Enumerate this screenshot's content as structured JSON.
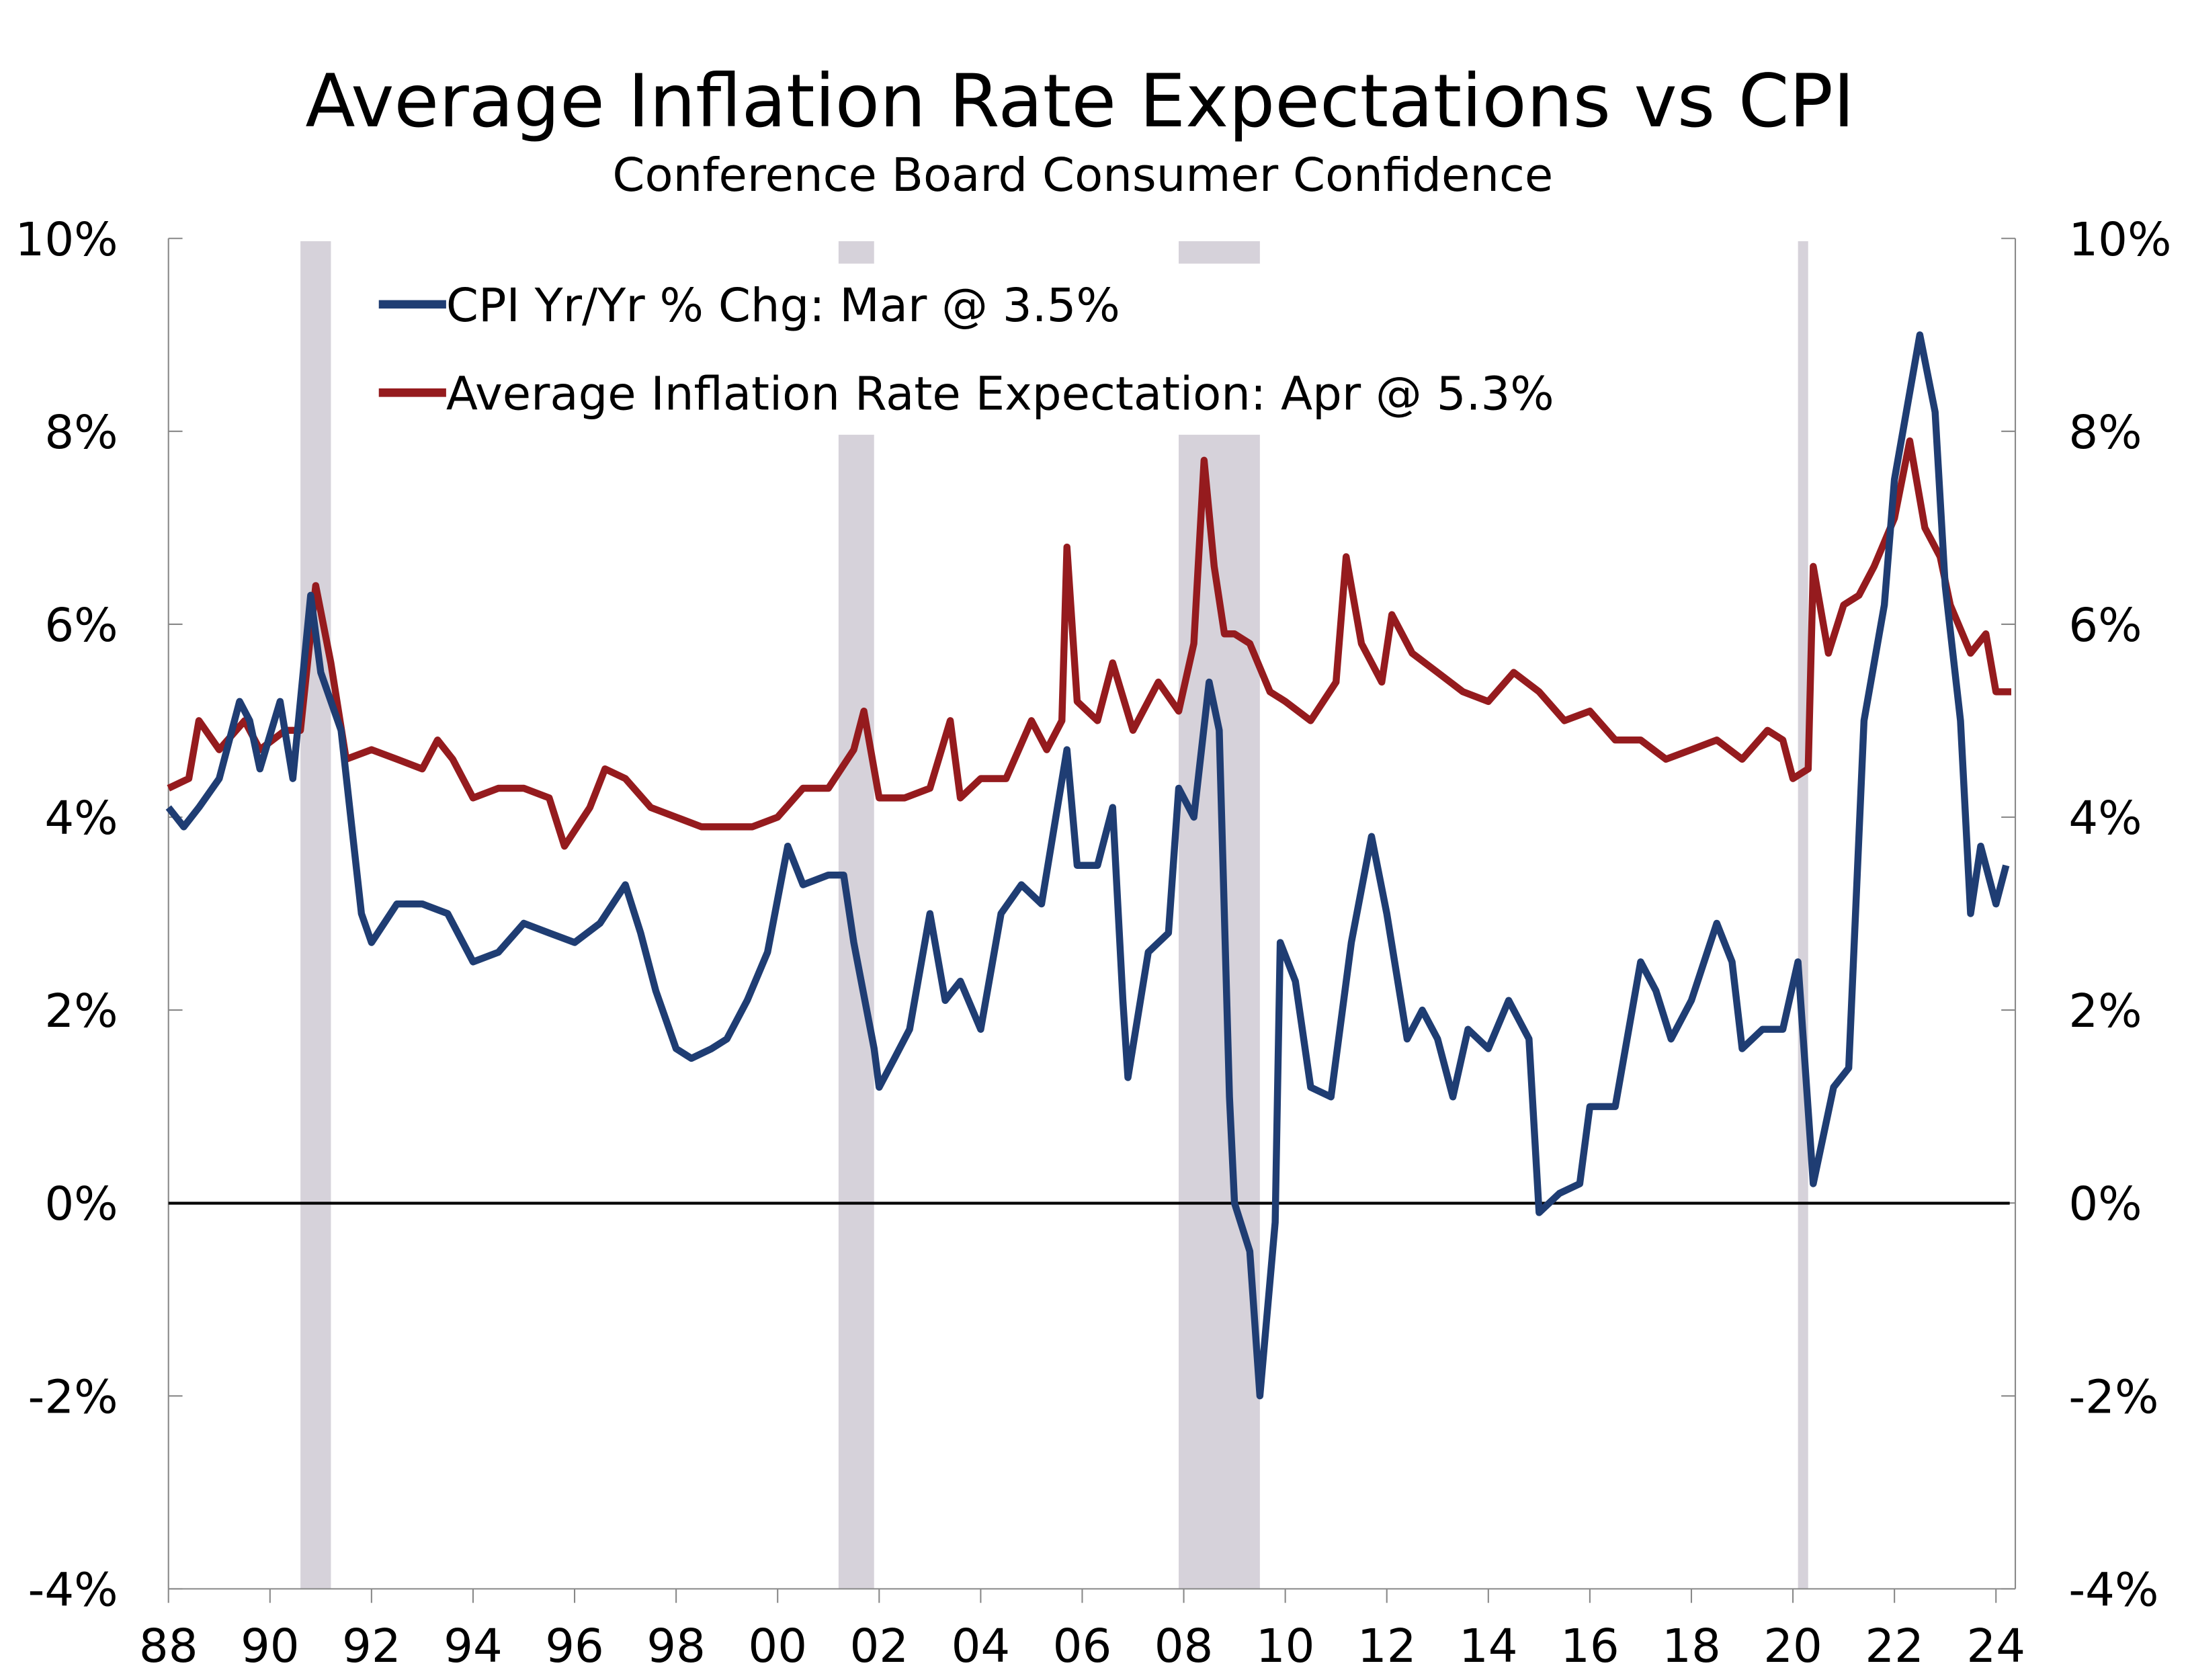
{
  "chart_data": {
    "type": "line",
    "title": "Average Inflation Rate Expectations vs CPI",
    "subtitle": "Conference Board Consumer Confidence",
    "xlabel": "",
    "ylabel": "",
    "xlim": [
      1988,
      2024.6
    ],
    "ylim": [
      -4,
      10
    ],
    "y_ticks": [
      "10%",
      "8%",
      "6%",
      "4%",
      "2%",
      "0%",
      "-2%",
      "-4%"
    ],
    "y_tick_values": [
      10,
      8,
      6,
      4,
      2,
      0,
      -2,
      -4
    ],
    "x_ticks": [
      "88",
      "90",
      "92",
      "94",
      "96",
      "98",
      "00",
      "02",
      "04",
      "06",
      "08",
      "10",
      "12",
      "14",
      "16",
      "18",
      "20",
      "22",
      "24"
    ],
    "x_tick_values": [
      1988,
      1990,
      1992,
      1994,
      1996,
      1998,
      2000,
      2002,
      2004,
      2006,
      2008,
      2010,
      2012,
      2014,
      2016,
      2018,
      2020,
      2022,
      2024
    ],
    "legend_position": "top-left",
    "recessions": [
      [
        1990.6,
        1991.2
      ],
      [
        2001.2,
        2001.9
      ],
      [
        2007.9,
        2009.5
      ],
      [
        2020.1,
        2020.3
      ]
    ],
    "colors": {
      "cpi": "#1f3d73",
      "expectation": "#951b1e",
      "recession": "#d6d2da"
    },
    "series": [
      {
        "name": "CPI Yr/Yr % Chg: Mar @ 3.5%",
        "color": "#1f3d73",
        "x": [
          1988.0,
          1988.3,
          1988.6,
          1989.0,
          1989.4,
          1989.6,
          1989.8,
          1990.2,
          1990.45,
          1990.8,
          1991.0,
          1991.4,
          1991.8,
          1992.0,
          1992.5,
          1993.0,
          1993.5,
          1994.0,
          1994.5,
          1995.0,
          1995.5,
          1996.0,
          1996.5,
          1997.0,
          1997.3,
          1997.6,
          1998.0,
          1998.3,
          1998.7,
          1999.0,
          1999.4,
          1999.8,
          2000.2,
          2000.5,
          2001.0,
          2001.3,
          2001.5,
          2001.9,
          2002.0,
          2002.3,
          2002.6,
          2003.0,
          2003.3,
          2003.6,
          2004.0,
          2004.4,
          2004.8,
          2005.2,
          2005.7,
          2005.9,
          2006.3,
          2006.6,
          2006.8,
          2006.9,
          2007.3,
          2007.7,
          2007.9,
          2008.2,
          2008.5,
          2008.7,
          2008.9,
          2009.0,
          2009.3,
          2009.5,
          2009.8,
          2009.9,
          2010.2,
          2010.5,
          2010.9,
          2011.3,
          2011.7,
          2012.0,
          2012.4,
          2012.7,
          2013.0,
          2013.3,
          2013.6,
          2014.0,
          2014.4,
          2014.8,
          2015.0,
          2015.4,
          2015.8,
          2016.0,
          2016.5,
          2017.0,
          2017.3,
          2017.6,
          2018.0,
          2018.5,
          2018.8,
          2019.0,
          2019.4,
          2019.8,
          2020.1,
          2020.4,
          2020.8,
          2021.1,
          2021.4,
          2021.8,
          2022.0,
          2022.5,
          2022.8,
          2023.0,
          2023.3,
          2023.5,
          2023.7,
          2024.0,
          2024.2
        ],
        "values": [
          4.1,
          3.9,
          4.1,
          4.4,
          5.2,
          5.0,
          4.5,
          5.2,
          4.4,
          6.3,
          5.5,
          4.9,
          3.0,
          2.7,
          3.1,
          3.1,
          3.0,
          2.5,
          2.6,
          2.9,
          2.8,
          2.7,
          2.9,
          3.3,
          2.8,
          2.2,
          1.6,
          1.5,
          1.6,
          1.7,
          2.1,
          2.6,
          3.7,
          3.3,
          3.4,
          3.4,
          2.7,
          1.6,
          1.2,
          1.5,
          1.8,
          3.0,
          2.1,
          2.3,
          1.8,
          3.0,
          3.3,
          3.1,
          4.7,
          3.5,
          3.5,
          4.1,
          2.1,
          1.3,
          2.6,
          2.8,
          4.3,
          4.0,
          5.4,
          4.9,
          1.1,
          0.0,
          -0.5,
          -2.0,
          -0.2,
          2.7,
          2.3,
          1.2,
          1.1,
          2.7,
          3.8,
          3.0,
          1.7,
          2.0,
          1.7,
          1.1,
          1.8,
          1.6,
          2.1,
          1.7,
          -0.1,
          0.1,
          0.2,
          1.0,
          1.0,
          2.5,
          2.2,
          1.7,
          2.1,
          2.9,
          2.5,
          1.6,
          1.8,
          1.8,
          2.5,
          0.2,
          1.2,
          1.4,
          5.0,
          6.2,
          7.5,
          9.0,
          8.2,
          6.4,
          5.0,
          3.0,
          3.7,
          3.1,
          3.5
        ]
      },
      {
        "name": "Average Inflation Rate Expectation: Apr @ 5.3%",
        "color": "#951b1e",
        "x": [
          1988.0,
          1988.4,
          1988.6,
          1989.0,
          1989.5,
          1989.8,
          1990.3,
          1990.6,
          1990.9,
          1991.2,
          1991.5,
          1992.0,
          1992.5,
          1993.0,
          1993.3,
          1993.6,
          1994.0,
          1994.5,
          1995.0,
          1995.5,
          1995.8,
          1996.3,
          1996.6,
          1997.0,
          1997.5,
          1998.0,
          1998.5,
          1999.0,
          1999.5,
          2000.0,
          2000.5,
          2001.0,
          2001.5,
          2001.7,
          2002.0,
          2002.5,
          2003.0,
          2003.4,
          2003.6,
          2004.0,
          2004.5,
          2005.0,
          2005.3,
          2005.6,
          2005.7,
          2005.9,
          2006.3,
          2006.6,
          2007.0,
          2007.5,
          2007.9,
          2008.2,
          2008.4,
          2008.6,
          2008.8,
          2009.0,
          2009.3,
          2009.7,
          2010.0,
          2010.5,
          2011.0,
          2011.2,
          2011.5,
          2011.9,
          2012.1,
          2012.5,
          2013.0,
          2013.5,
          2014.0,
          2014.5,
          2015.0,
          2015.5,
          2016.0,
          2016.5,
          2017.0,
          2017.5,
          2018.0,
          2018.5,
          2019.0,
          2019.5,
          2019.8,
          2020.0,
          2020.3,
          2020.4,
          2020.7,
          2021.0,
          2021.3,
          2021.6,
          2022.0,
          2022.3,
          2022.6,
          2022.9,
          2023.1,
          2023.5,
          2023.8,
          2024.0,
          2024.3
        ],
        "values": [
          4.3,
          4.4,
          5.0,
          4.7,
          5.0,
          4.7,
          4.9,
          4.9,
          6.4,
          5.6,
          4.6,
          4.7,
          4.6,
          4.5,
          4.8,
          4.6,
          4.2,
          4.3,
          4.3,
          4.2,
          3.7,
          4.1,
          4.5,
          4.4,
          4.1,
          4.0,
          3.9,
          3.9,
          3.9,
          4.0,
          4.3,
          4.3,
          4.7,
          5.1,
          4.2,
          4.2,
          4.3,
          5.0,
          4.2,
          4.4,
          4.4,
          5.0,
          4.7,
          5.0,
          6.8,
          5.2,
          5.0,
          5.6,
          4.9,
          5.4,
          5.1,
          5.8,
          7.7,
          6.6,
          5.9,
          5.9,
          5.8,
          5.3,
          5.2,
          5.0,
          5.4,
          6.7,
          5.8,
          5.4,
          6.1,
          5.7,
          5.5,
          5.3,
          5.2,
          5.5,
          5.3,
          5.0,
          5.1,
          4.8,
          4.8,
          4.6,
          4.7,
          4.8,
          4.6,
          4.9,
          4.8,
          4.4,
          4.5,
          6.6,
          5.7,
          6.2,
          6.3,
          6.6,
          7.1,
          7.9,
          7.0,
          6.7,
          6.2,
          5.7,
          5.9,
          5.3,
          5.3
        ]
      }
    ]
  }
}
